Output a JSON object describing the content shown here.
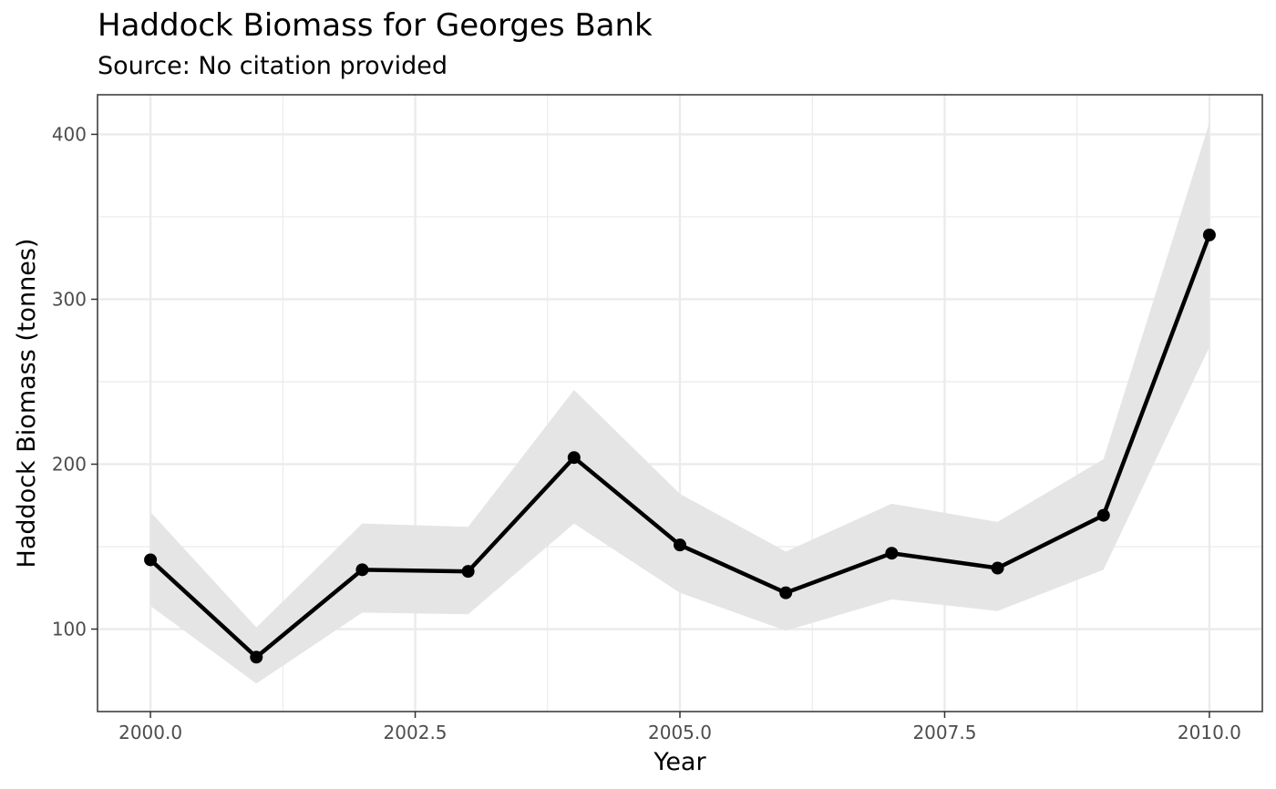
{
  "chart_data": {
    "type": "line",
    "title": "Haddock Biomass for Georges Bank",
    "subtitle": "Source: No citation provided",
    "xlabel": "Year",
    "ylabel": "Haddock Biomass (tonnes)",
    "x": [
      2000,
      2001,
      2002,
      2003,
      2004,
      2005,
      2006,
      2007,
      2008,
      2009,
      2010
    ],
    "series": [
      {
        "values": [
          142,
          83,
          136,
          135,
          204,
          151,
          122,
          146,
          137,
          169,
          339
        ],
        "lower": [
          114,
          67,
          110,
          109,
          164,
          122,
          99,
          118,
          111,
          136,
          271
        ],
        "upper": [
          171,
          101,
          164,
          162,
          245,
          182,
          147,
          176,
          165,
          203,
          407
        ]
      }
    ],
    "xlim": [
      1999.5,
      2010.5
    ],
    "ylim": [
      50,
      424
    ],
    "xticks": [
      2000,
      2002.5,
      2005,
      2007.5,
      2010
    ],
    "xtick_labels": [
      "2000.0",
      "2002.5",
      "2005.0",
      "2007.5",
      "2010.0"
    ],
    "yticks": [
      100,
      200,
      300,
      400
    ],
    "ytick_labels": [
      "100",
      "200",
      "300",
      "400"
    ],
    "grid": true,
    "legend": "none",
    "colors": {
      "line": "#000000",
      "ribbon": "#e5e5e5",
      "grid": "#ebebeb",
      "panel_border": "#333333"
    }
  }
}
